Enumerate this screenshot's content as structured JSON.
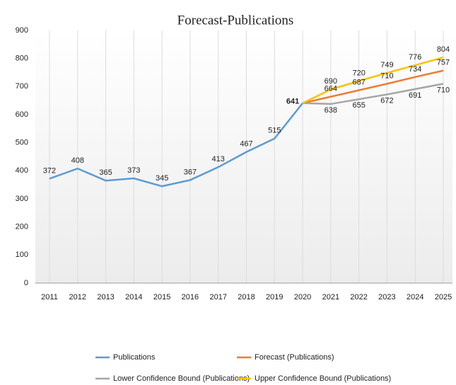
{
  "chart_data": {
    "type": "line",
    "title": "Forecast-Publications",
    "categories": [
      "2011",
      "2012",
      "2013",
      "2014",
      "2015",
      "2016",
      "2017",
      "2018",
      "2019",
      "2020",
      "2021",
      "2022",
      "2023",
      "2024",
      "2025"
    ],
    "series": [
      {
        "name": "Publications",
        "color": "#5b9bd5",
        "values": [
          372,
          408,
          365,
          373,
          345,
          367,
          413,
          467,
          515,
          641,
          null,
          null,
          null,
          null,
          null
        ]
      },
      {
        "name": "Forecast (Publications)",
        "color": "#ed7d31",
        "values": [
          null,
          null,
          null,
          null,
          null,
          null,
          null,
          null,
          null,
          641,
          664,
          687,
          710,
          734,
          757
        ]
      },
      {
        "name": "Lower Confidence Bound (Publications)",
        "color": "#a5a5a5",
        "values": [
          null,
          null,
          null,
          null,
          null,
          null,
          null,
          null,
          null,
          641,
          638,
          655,
          672,
          691,
          710
        ]
      },
      {
        "name": "Upper Confidence Bound (Publications)",
        "color": "#ffc000",
        "values": [
          null,
          null,
          null,
          null,
          null,
          null,
          null,
          null,
          null,
          641,
          690,
          720,
          749,
          776,
          804
        ]
      }
    ],
    "ylim": [
      0,
      900
    ],
    "yticks": [
      0,
      100,
      200,
      300,
      400,
      500,
      600,
      700,
      800,
      900
    ],
    "grid": true
  }
}
